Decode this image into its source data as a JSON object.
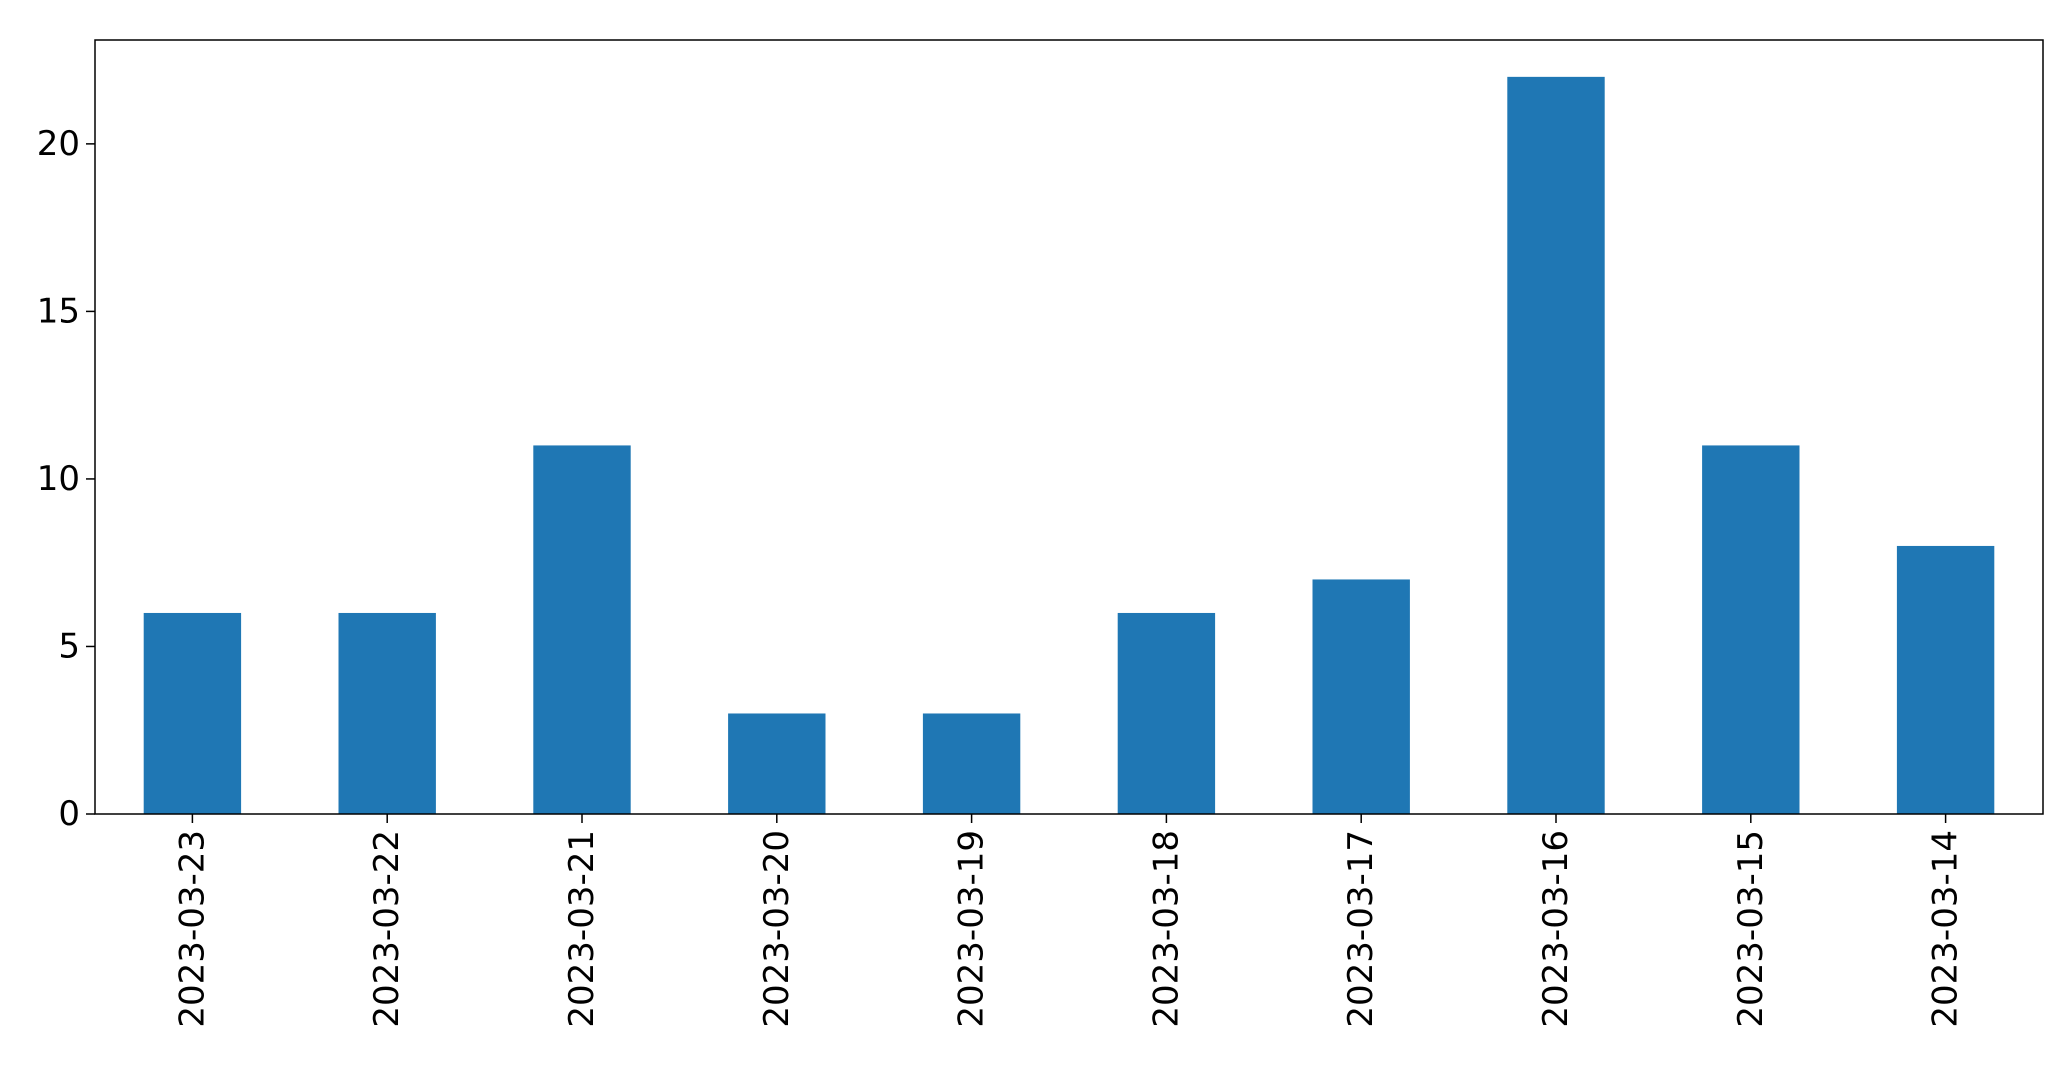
{
  "chart_data": {
    "type": "bar",
    "title": "",
    "xlabel": "",
    "ylabel": "",
    "categories": [
      "2023-03-23",
      "2023-03-22",
      "2023-03-21",
      "2023-03-20",
      "2023-03-19",
      "2023-03-18",
      "2023-03-17",
      "2023-03-16",
      "2023-03-15",
      "2023-03-14"
    ],
    "values": [
      6,
      6,
      11,
      3,
      3,
      6,
      7,
      22,
      11,
      8
    ],
    "ylim": [
      0,
      23.1
    ],
    "yticks": [
      "0",
      "5",
      "10",
      "15",
      "20"
    ],
    "grid": false,
    "legend": "none",
    "bar_color": "#1f77b4"
  }
}
